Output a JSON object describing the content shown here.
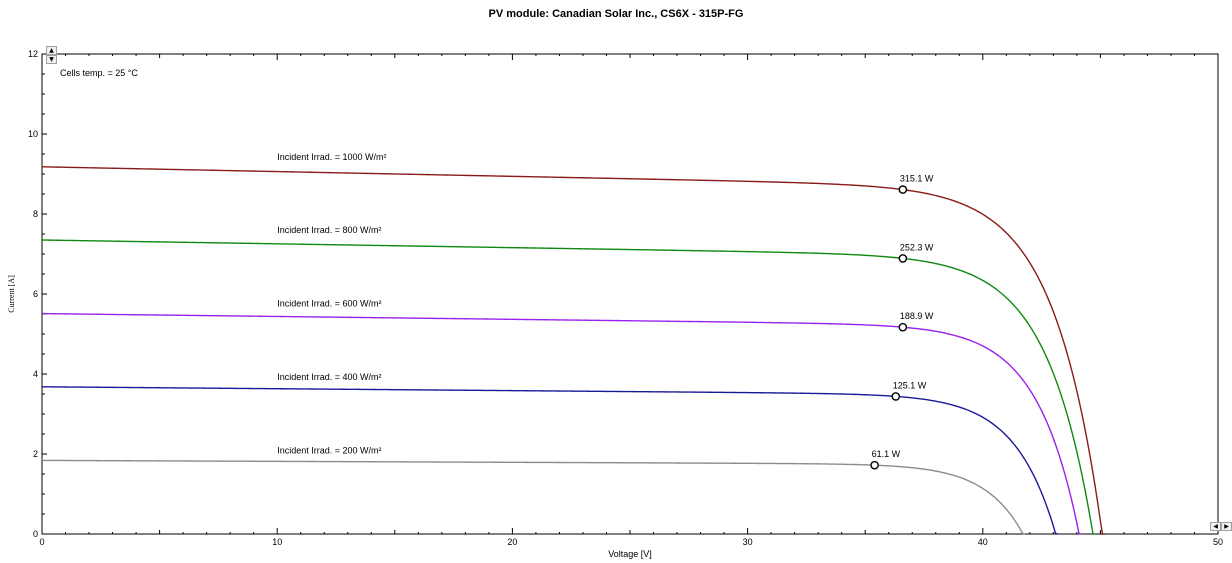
{
  "chart_data": {
    "type": "line",
    "title": "PV module:  Canadian Solar Inc.,  CS6X - 315P-FG",
    "subtitle": "Cells temp. = 25 °C",
    "xlabel": "Voltage [V]",
    "ylabel": "Current [A]",
    "xlim": [
      0,
      50
    ],
    "ylim": [
      0,
      12
    ],
    "xticks": [
      0,
      10,
      20,
      30,
      40,
      50
    ],
    "yticks": [
      0,
      2,
      4,
      6,
      8,
      10,
      12
    ],
    "grid": false,
    "series": [
      {
        "name": "Incident Irrad. = 1000 W/m²",
        "color": "#8b1a1a",
        "isc": 9.18,
        "voc": 45.2,
        "mpp": {
          "v": 36.6,
          "i": 8.61,
          "label": "315.1 W"
        }
      },
      {
        "name": "Incident Irrad. = 800 W/m²",
        "color": "#118811",
        "isc": 7.35,
        "voc": 44.8,
        "mpp": {
          "v": 36.6,
          "i": 6.89,
          "label": "252.3 W"
        }
      },
      {
        "name": "Incident Irrad. = 600 W/m²",
        "color": "#9922ee",
        "isc": 5.51,
        "voc": 44.2,
        "mpp": {
          "v": 36.6,
          "i": 5.17,
          "label": "188.9 W"
        }
      },
      {
        "name": "Incident Irrad. = 400 W/m²",
        "color": "#1a1a99",
        "isc": 3.68,
        "voc": 43.2,
        "mpp": {
          "v": 36.3,
          "i": 3.44,
          "label": "125.1 W"
        }
      },
      {
        "name": "Incident Irrad. = 200 W/m²",
        "color": "#8c8c8c",
        "isc": 1.84,
        "voc": 41.8,
        "mpp": {
          "v": 35.4,
          "i": 1.72,
          "label": "61.1 W"
        }
      }
    ]
  },
  "controls": {
    "spin_up": "▲",
    "spin_down": "▼",
    "scroll_left": "◀",
    "scroll_right": "▶"
  }
}
